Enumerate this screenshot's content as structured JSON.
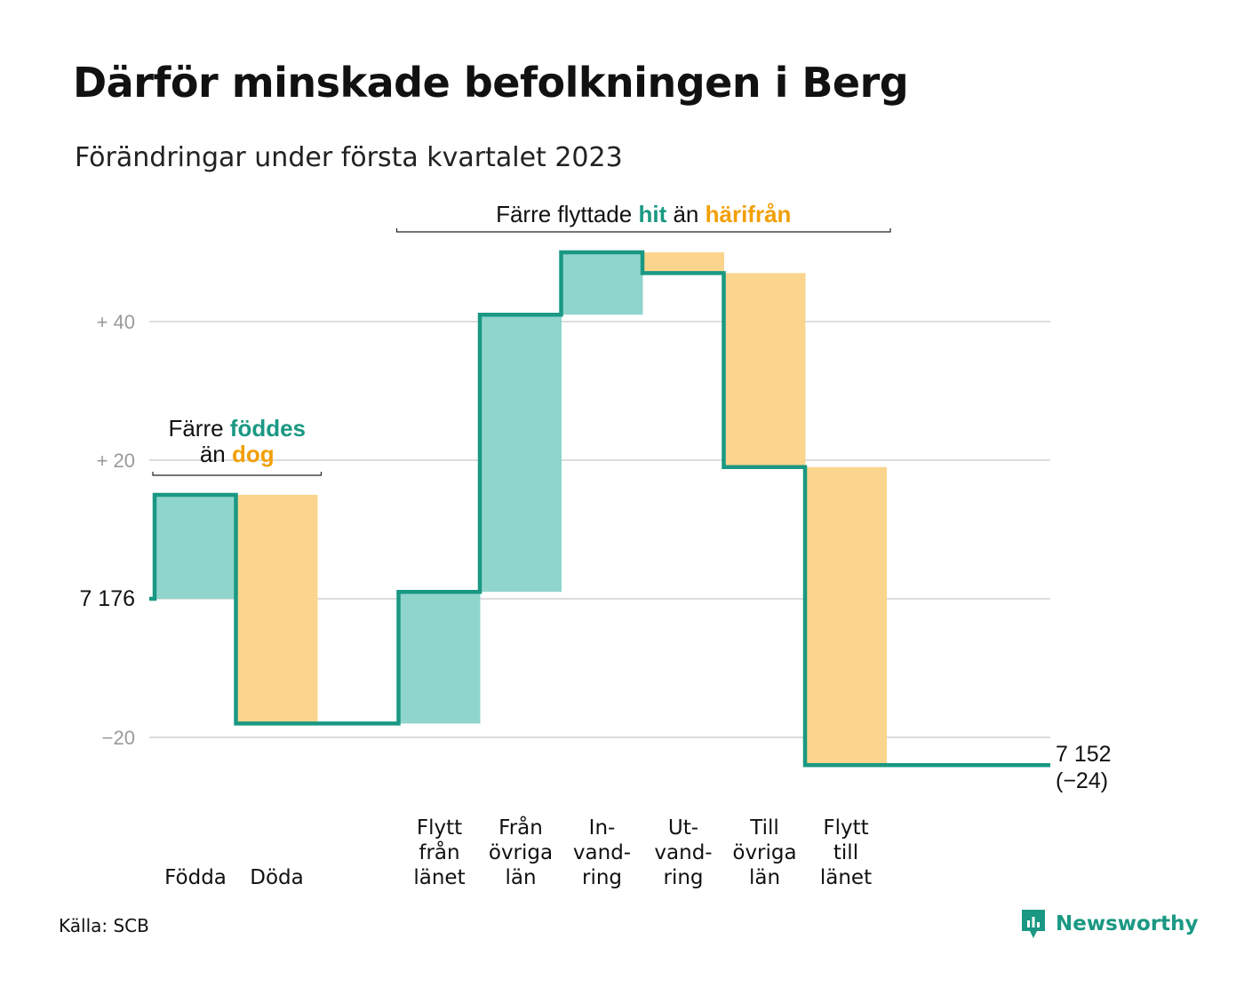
{
  "title": "Därför minskade befolkningen i Berg",
  "subtitle": "Förändringar under första kvartalet 2023",
  "source": "Källa: SCB",
  "brand": "Newsworthy",
  "colors": {
    "increase_fill": "#8fd5cc",
    "decrease_fill": "#fbd58d",
    "line": "#1a9883",
    "grid": "#dddddd",
    "accent_green": "#1a9883",
    "accent_orange": "#f29f05"
  },
  "chart_data": {
    "type": "waterfall",
    "start": {
      "label": "7 176",
      "value": 7176
    },
    "end": {
      "label": "7 152",
      "change_label": "(−24)",
      "value": 7152
    },
    "categories": [
      {
        "id": "fodda",
        "lines": [
          "Födda"
        ],
        "delta": 15
      },
      {
        "id": "doda",
        "lines": [
          "Döda"
        ],
        "delta": -33
      },
      {
        "id": "gap",
        "lines": [],
        "delta": 0
      },
      {
        "id": "flytt-fran-lanet",
        "lines": [
          "Flytt",
          "från",
          "länet"
        ],
        "delta": 19
      },
      {
        "id": "fran-ovriga-lan",
        "lines": [
          "Från",
          "övriga",
          "län"
        ],
        "delta": 40
      },
      {
        "id": "invandring",
        "lines": [
          "In-",
          "vand-",
          "ring"
        ],
        "delta": 9
      },
      {
        "id": "utvandring",
        "lines": [
          "Ut-",
          "vand-",
          "ring"
        ],
        "delta": -3
      },
      {
        "id": "till-ovriga-lan",
        "lines": [
          "Till",
          "övriga",
          "län"
        ],
        "delta": -28
      },
      {
        "id": "flytt-till-lanet",
        "lines": [
          "Flytt",
          "till",
          "länet"
        ],
        "delta": -43
      }
    ],
    "y_ticks": [
      {
        "value": 40,
        "label": "+ 40"
      },
      {
        "value": 20,
        "label": "+ 20"
      },
      {
        "value": 0,
        "label": "7 176"
      },
      {
        "value": -20,
        "label": "−20"
      }
    ],
    "ylim": [
      -30,
      52
    ],
    "grid": true,
    "annotations": [
      {
        "id": "births-deaths",
        "lines": [
          [
            {
              "text": "Färre ",
              "style": "plain"
            },
            {
              "text": "föddes",
              "style": "green"
            }
          ],
          [
            {
              "text": "än ",
              "style": "plain"
            },
            {
              "text": "dog",
              "style": "orange"
            }
          ]
        ],
        "from_category": 0,
        "to_category": 1
      },
      {
        "id": "migration",
        "lines": [
          [
            {
              "text": "Färre flyttade ",
              "style": "plain"
            },
            {
              "text": "hit",
              "style": "green"
            },
            {
              "text": " än ",
              "style": "plain"
            },
            {
              "text": "härifrån",
              "style": "orange"
            }
          ]
        ],
        "from_category": 3,
        "to_category": 8
      }
    ]
  }
}
